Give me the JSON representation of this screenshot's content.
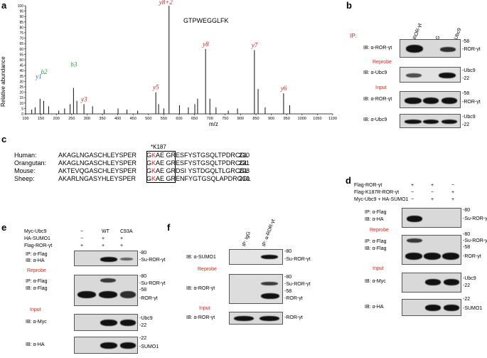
{
  "panels": {
    "a": "a",
    "b": "b",
    "c": "c",
    "d": "d",
    "e": "e",
    "f": "f"
  },
  "panel_a": {
    "peptide": "GTPWEGGLFK",
    "ylabel": "Relative abundance",
    "xlabel": "m/z",
    "yticks": [
      "0",
      "5",
      "10",
      "15",
      "20",
      "25",
      "30",
      "35",
      "40",
      "45",
      "50",
      "55",
      "60",
      "65",
      "70",
      "75",
      "80",
      "85",
      "90",
      "95",
      "100"
    ],
    "xticks": [
      "100",
      "150",
      "200",
      "250",
      "300",
      "350",
      "400",
      "450",
      "500",
      "550",
      "600",
      "650",
      "700",
      "750",
      "800",
      "850",
      "900",
      "950",
      "1000",
      "1050",
      "1100"
    ],
    "ions": [
      {
        "label": "y8+2",
        "color": "#d9261c",
        "mz": 567
      },
      {
        "label": "y8",
        "color": "#d9261c",
        "mz": 686
      },
      {
        "label": "y7",
        "color": "#d9261c",
        "mz": 845
      },
      {
        "label": "y6",
        "color": "#d9261c",
        "mz": 940
      },
      {
        "label": "y5",
        "color": "#d9261c",
        "mz": 524
      },
      {
        "label": "y3",
        "color": "#d9261c",
        "mz": 290
      },
      {
        "label": "y1",
        "color": "#1f6fd1",
        "mz": 147
      },
      {
        "label": "b2",
        "color": "#2ba03c",
        "mz": 159
      },
      {
        "label": "b3",
        "color": "#2ba03c",
        "mz": 256
      }
    ]
  },
  "chart_data": {
    "type": "bar",
    "xlabel": "m/z",
    "ylabel": "Relative abundance",
    "title": "GTPWEGGLFK",
    "xlim": [
      100,
      1100
    ],
    "ylim": [
      0,
      100
    ],
    "x": [
      120,
      131,
      147,
      159,
      175,
      208,
      227,
      245,
      256,
      267,
      290,
      318,
      356,
      401,
      430,
      465,
      524,
      533,
      550,
      567,
      601,
      630,
      651,
      660,
      686,
      700,
      720,
      760,
      790,
      845,
      857,
      880,
      940,
      960
    ],
    "values": [
      4,
      6,
      14,
      12,
      7,
      3,
      5,
      9,
      24,
      12,
      9,
      7,
      4,
      5,
      4,
      3,
      20,
      9,
      5,
      100,
      8,
      6,
      9,
      14,
      60,
      14,
      6,
      3,
      5,
      59,
      23,
      6,
      19,
      8
    ]
  },
  "panel_b": {
    "ip_label": "IP:",
    "lanes": [
      "α-ROR-γt",
      "IgG",
      "α-Ubc9"
    ],
    "rows": [
      {
        "ib": "IB: α-ROR-γt",
        "right": [
          "-58",
          "-ROR-γt"
        ]
      },
      {
        "ib": "IB: α-Ubc9",
        "right": [
          "-Ubc9",
          "-22"
        ]
      },
      {
        "ib": "IB: α-ROR-γt",
        "right": [
          "-58",
          "-ROR-γt"
        ]
      },
      {
        "ib": "IB: α-Ubc9",
        "right": [
          "-Ubc9",
          "-22"
        ]
      }
    ],
    "reprobe": "Reprobe",
    "input": "Input"
  },
  "panel_c": {
    "site": "*K187",
    "rows": [
      {
        "species": "Human:",
        "pre": "AKAGLNGASCHLEYSPER",
        "g": "G",
        "k": "K",
        "ae": "AE",
        "post": "GRESFYSTGSQLTPDRCGL",
        "num": "210"
      },
      {
        "species": "Orangutan:",
        "pre": "AKAGLNGASCHLEYSPER",
        "g": "G",
        "k": "K",
        "ae": "AE",
        "post": "GRESFYSTGSQLTPDRCGL",
        "num": "231"
      },
      {
        "species": "Mouse:",
        "pre": "AKTEVQGASCHLEYSPER",
        "g": "G",
        "k": "K",
        "ae": "AE",
        "post": "GRDSI YSTDGQLTLGRCGL",
        "num": "208"
      },
      {
        "species": "Sheep:",
        "pre": "AKARLNGASYHLEYSPER",
        "g": "G",
        "k": "K",
        "ae": "AE",
        "post": "GRENFYGTGSQLAPDRGGL",
        "num": "210"
      }
    ]
  },
  "panel_d": {
    "conditions": [
      {
        "label": "Flag-ROR-γt",
        "marks": [
          "+",
          "+",
          "−"
        ]
      },
      {
        "label": "Flag-K187R-ROR-γt",
        "marks": [
          "−",
          "−",
          "+"
        ]
      },
      {
        "label": "Myc-Ubc9 + HA-SUMO1",
        "marks": [
          "−",
          "+",
          "+"
        ]
      }
    ],
    "rows": [
      {
        "ib": [
          "IP: α-Flag",
          "IB: α-HA"
        ],
        "right": [
          "-80",
          "-Su-ROR-γt"
        ]
      },
      {
        "ib": [
          "IP: α-Flag",
          "IB: α-Flag"
        ],
        "right": [
          "-80",
          "-Su-ROR-γt",
          "-58",
          "-ROR-γt"
        ]
      },
      {
        "ib": [
          "IB: α-Myc"
        ],
        "right": [
          "-Ubc9",
          "-22"
        ]
      },
      {
        "ib": [
          "IB: α-HA"
        ],
        "right": [
          "-22",
          "-SUMO1"
        ]
      }
    ],
    "reprobe": "Reprobe",
    "input": "Input"
  },
  "panel_e": {
    "conditions": [
      {
        "label": "Myc-Ubc9",
        "marks": [
          "−",
          "WT",
          "C93A"
        ]
      },
      {
        "label": "HA-SUMO1",
        "marks": [
          "−",
          "+",
          "+"
        ]
      },
      {
        "label": "Flag-ROR-γt",
        "marks": [
          "+",
          "+",
          "+"
        ]
      }
    ],
    "rows": [
      {
        "ib": [
          "IP: α-Flag",
          "IB: α-HA"
        ],
        "right": [
          "-80",
          "-Su-ROR-γt"
        ]
      },
      {
        "ib": [
          "IP: α-Flag",
          "IB: α-Flag"
        ],
        "right": [
          "-80",
          "-Su-ROR-γt",
          "-58",
          "-ROR-γt"
        ]
      },
      {
        "ib": [
          "IB: α-Myc"
        ],
        "right": [
          "-Ubc9",
          "-22"
        ]
      },
      {
        "ib": [
          "IB: α-HA"
        ],
        "right": [
          "-22",
          "-SUMO1"
        ]
      }
    ],
    "reprobe": "Reprobe",
    "input": "Input"
  },
  "panel_f": {
    "lanes": [
      "IP: IgG",
      "IP: α-ROR-γt"
    ],
    "rows": [
      {
        "ib": "IB: α-SUMO1",
        "right": [
          "-80",
          "-Su-ROR-γt"
        ]
      },
      {
        "ib": "IB: α-ROR-γt",
        "right": [
          "-80",
          "-Su-ROR-γt",
          "-58",
          "-ROR-γt"
        ]
      },
      {
        "ib": "IB: α-ROR-γt",
        "right": [
          "-ROR-γt"
        ]
      }
    ],
    "reprobe": "Reprobe",
    "input": "Input"
  }
}
